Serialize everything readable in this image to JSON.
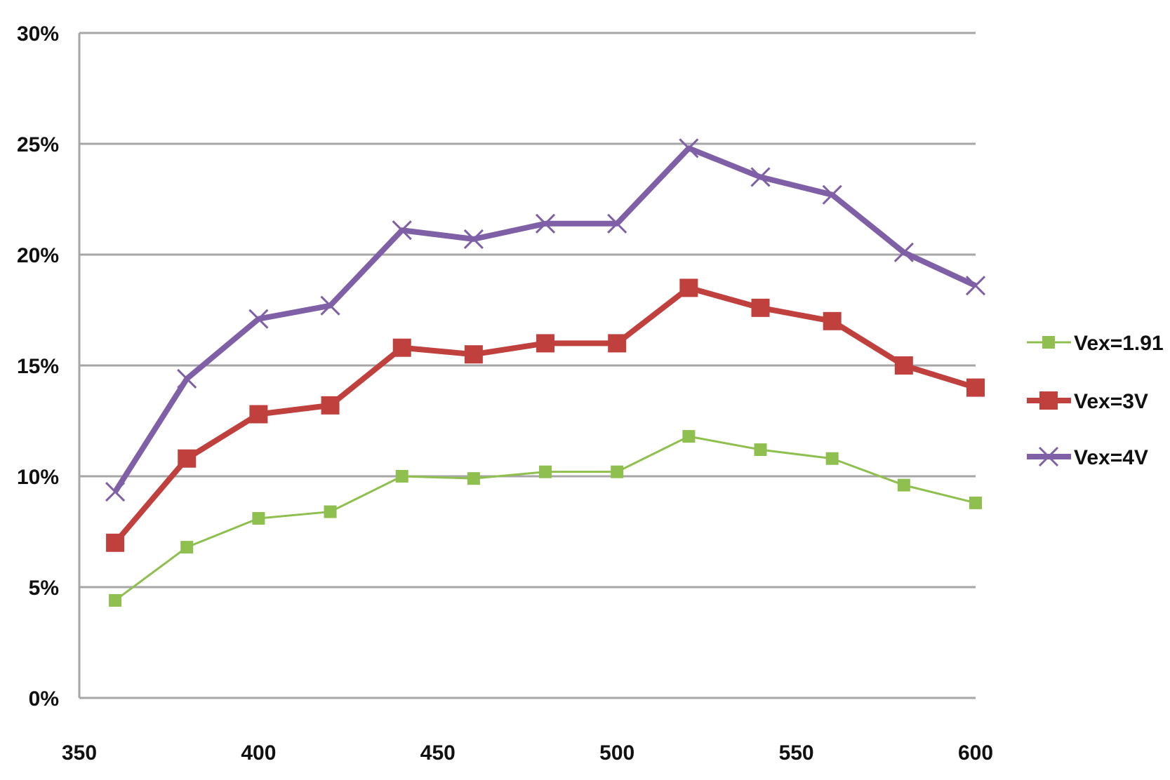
{
  "chart_data": {
    "type": "line",
    "title": "",
    "xlabel": "",
    "ylabel": "",
    "xlim": [
      350,
      600
    ],
    "ylim": [
      0,
      30
    ],
    "x_ticks": [
      350,
      400,
      450,
      500,
      550,
      600
    ],
    "y_ticks": [
      0,
      5,
      10,
      15,
      20,
      25,
      30
    ],
    "y_tick_labels": [
      "0%",
      "5%",
      "10%",
      "15%",
      "20%",
      "25%",
      "30%"
    ],
    "grid": true,
    "legend_position": "right",
    "x": [
      360,
      380,
      400,
      420,
      440,
      460,
      480,
      500,
      520,
      540,
      560,
      580,
      600
    ],
    "series": [
      {
        "name": "Vex=1.91",
        "color": "#8fbf4f",
        "marker": "square-small",
        "values": [
          4.4,
          6.8,
          8.1,
          8.4,
          10.0,
          9.9,
          10.2,
          10.2,
          11.8,
          11.2,
          10.8,
          9.6,
          8.8
        ]
      },
      {
        "name": "Vex=3V",
        "color": "#c0403e",
        "marker": "square",
        "values": [
          7.0,
          10.8,
          12.8,
          13.2,
          15.8,
          15.5,
          16.0,
          16.0,
          18.5,
          17.6,
          17.0,
          15.0,
          14.0
        ]
      },
      {
        "name": "Vex=4V",
        "color": "#7f5fa5",
        "marker": "x",
        "values": [
          9.3,
          14.4,
          17.1,
          17.7,
          21.1,
          20.7,
          21.4,
          21.4,
          24.8,
          23.5,
          22.7,
          20.1,
          18.6
        ]
      }
    ]
  }
}
